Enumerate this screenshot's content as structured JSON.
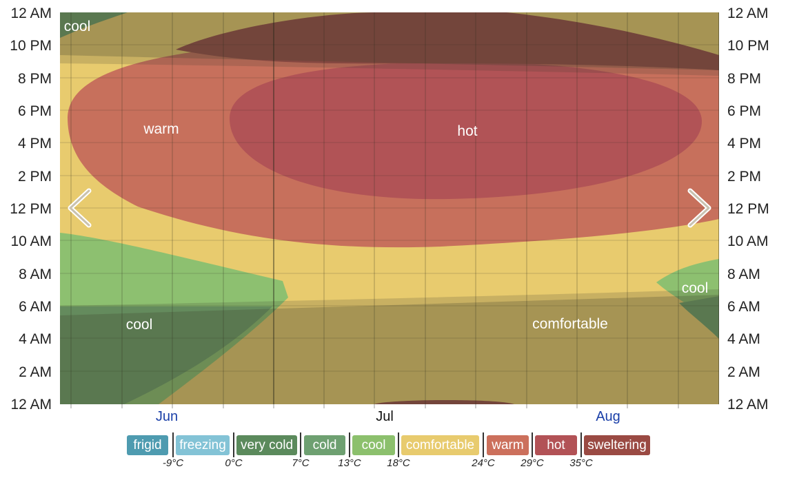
{
  "chart_data": {
    "type": "heatmap",
    "y_labels_left": [
      "12 AM",
      "10 PM",
      "8 PM",
      "6 PM",
      "4 PM",
      "2 PM",
      "12 PM",
      "10 AM",
      "8 AM",
      "6 AM",
      "4 AM",
      "2 AM",
      "12 AM"
    ],
    "y_labels_right": [
      "12 AM",
      "10 PM",
      "8 PM",
      "6 PM",
      "4 PM",
      "2 PM",
      "12 PM",
      "10 AM",
      "8 AM",
      "6 AM",
      "4 AM",
      "2 AM",
      "12 AM"
    ],
    "x_labels": [
      {
        "label": "Jun",
        "color": "#1a3fa8"
      },
      {
        "label": "Jul",
        "color": "#111111"
      },
      {
        "label": "Aug",
        "color": "#1a3fa8"
      }
    ],
    "region_labels": [
      "cool",
      "warm",
      "hot",
      "cool",
      "comfortable",
      "cool"
    ],
    "legend": [
      {
        "label": "frigid",
        "color": "#4e9bb0"
      },
      {
        "label": "freezing",
        "color": "#83c3d6"
      },
      {
        "label": "very cold",
        "color": "#5b8a5c"
      },
      {
        "label": "cold",
        "color": "#6ea071"
      },
      {
        "label": "cool",
        "color": "#8cc06d"
      },
      {
        "label": "comfortable",
        "color": "#e8cb6e"
      },
      {
        "label": "warm",
        "color": "#cc705c"
      },
      {
        "label": "hot",
        "color": "#b25256"
      },
      {
        "label": "sweltering",
        "color": "#9a4a43"
      }
    ],
    "temperature_thresholds": [
      "-9°C",
      "0°C",
      "7°C",
      "13°C",
      "18°C",
      "24°C",
      "29°C",
      "35°C"
    ],
    "colors": {
      "comfortable": "#e8cb6e",
      "warm": "#c7705c",
      "hot": "#b15356",
      "sweltering": "#964c46",
      "cool": "#8cc06d",
      "cold": "#6a9a66",
      "night_overlay": "#3a3a2a"
    }
  },
  "navigation": {
    "prev_icon": "chevron-left-icon",
    "next_icon": "chevron-right-icon"
  }
}
